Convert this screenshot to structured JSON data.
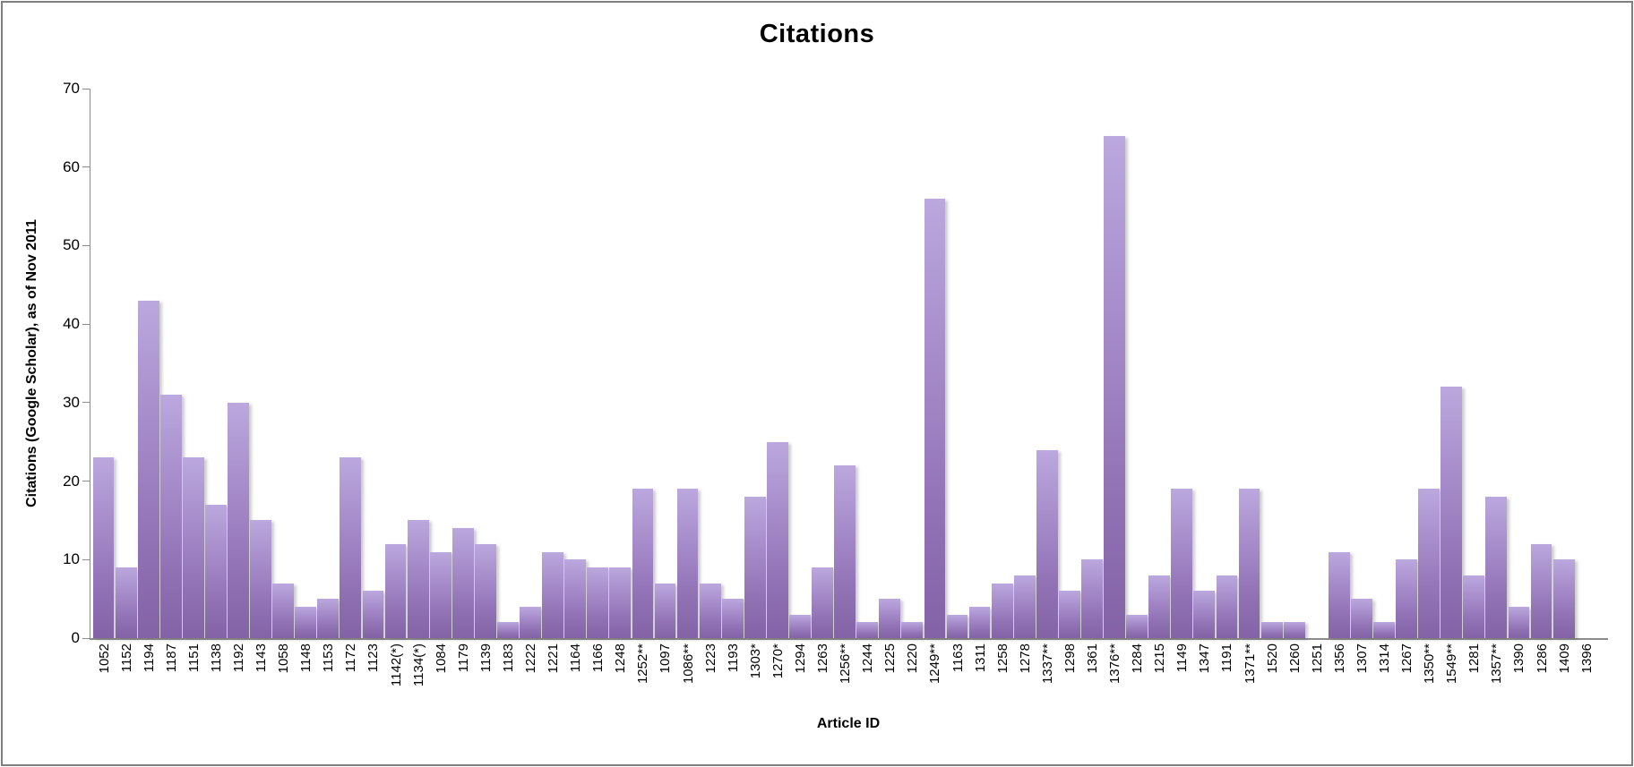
{
  "chart_data": {
    "type": "bar",
    "title": "Citations",
    "xlabel": "Article ID",
    "ylabel": "Citations (Google Scholar), as of Nov 2011",
    "ylim": [
      0,
      70
    ],
    "yticks": [
      0,
      10,
      20,
      30,
      40,
      50,
      60,
      70
    ],
    "grid": false,
    "legend": null,
    "bar_color_top": "#bba8de",
    "bar_color_bottom": "#8363a6",
    "axis_color": "#8c8c8c",
    "categories": [
      "1052",
      "1152",
      "1194",
      "1187",
      "1151",
      "1138",
      "1192",
      "1143",
      "1058",
      "1148",
      "1153",
      "1172",
      "1123",
      "1142(*)",
      "1134(*)",
      "1084",
      "1179",
      "1139",
      "1183",
      "1222",
      "1221",
      "1164",
      "1166",
      "1248",
      "1252**",
      "1097",
      "1086**",
      "1223",
      "1193",
      "1303*",
      "1270*",
      "1294",
      "1263",
      "1256**",
      "1244",
      "1225",
      "1220",
      "1249**",
      "1163",
      "1311",
      "1258",
      "1278",
      "1337**",
      "1298",
      "1361",
      "1376**",
      "1284",
      "1215",
      "1149",
      "1347",
      "1191",
      "1371**",
      "1520",
      "1260",
      "1251",
      "1356",
      "1307",
      "1314",
      "1267",
      "1350**",
      "1549**",
      "1281",
      "1357**",
      "1390",
      "1286",
      "1409",
      "1396"
    ],
    "values": [
      23,
      9,
      43,
      31,
      23,
      17,
      30,
      15,
      7,
      4,
      5,
      23,
      6,
      12,
      15,
      11,
      14,
      12,
      2,
      4,
      11,
      10,
      9,
      9,
      19,
      7,
      19,
      7,
      5,
      18,
      25,
      3,
      9,
      22,
      2,
      5,
      2,
      56,
      3,
      4,
      7,
      8,
      24,
      6,
      10,
      64,
      3,
      8,
      19,
      6,
      8,
      19,
      2,
      2,
      0,
      11,
      5,
      2,
      10,
      19,
      32,
      8,
      18,
      4,
      12,
      10,
      0
    ]
  }
}
